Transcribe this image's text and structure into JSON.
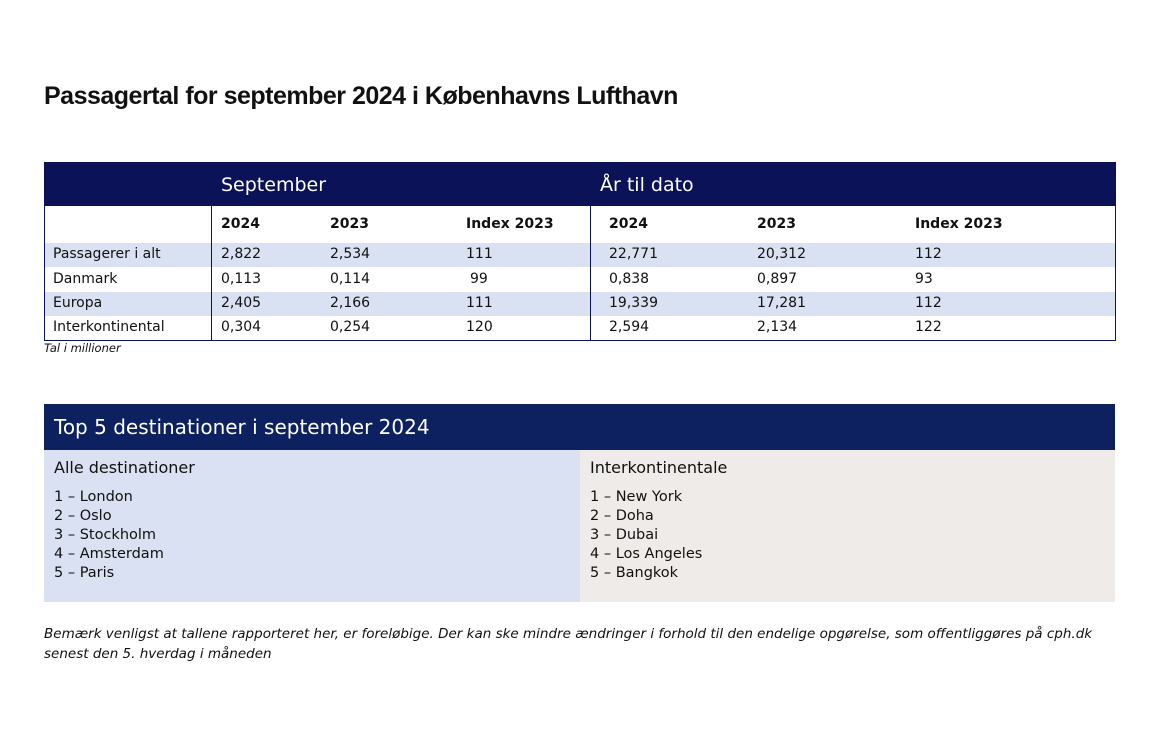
{
  "title": "Passagertal for september 2024 i Københavns Lufthavn",
  "table": {
    "group_headers": [
      "September",
      "År til dato"
    ],
    "column_headers": [
      "2024",
      "2023",
      "Index 2023",
      "2024",
      "2023",
      "Index 2023"
    ],
    "rows": [
      {
        "label": "Passagerer i alt",
        "values": [
          "2,822",
          "2,534",
          "111",
          "22,771",
          "20,312",
          "112"
        ]
      },
      {
        "label": "Danmark",
        "values": [
          "0,113",
          "0,114",
          "99",
          "0,838",
          "0,897",
          "93"
        ]
      },
      {
        "label": "Europa",
        "values": [
          "2,405",
          "2,166",
          "111",
          "19,339",
          "17,281",
          "112"
        ]
      },
      {
        "label": "Interkontinental",
        "values": [
          "0,304",
          "0,254",
          "120",
          "2,594",
          "2,134",
          "122"
        ]
      }
    ],
    "note": "Tal i millioner"
  },
  "top5": {
    "title": "Top 5 destinationer i september 2024",
    "all": {
      "title": "Alle destinationer",
      "items": [
        "1 – London",
        "2 – Oslo",
        "3 – Stockholm",
        "4 – Amsterdam",
        "5 – Paris"
      ]
    },
    "intercont": {
      "title": "Interkontinentale",
      "items": [
        "1 – New York",
        "2 – Doha",
        "3 – Dubai",
        "4 – Los Angeles",
        "5 – Bangkok"
      ]
    }
  },
  "disclaimer": "Bemærk venligst at tallene rapporteret her, er foreløbige. Der kan ske mindre ændringer i forhold til den endelige opgørelse, som offentliggøres på cph.dk senest den 5. hverdag i måneden",
  "colors": {
    "navy": "#0b1257",
    "stripe": "#d9e1f2",
    "beige": "#efebe8"
  }
}
